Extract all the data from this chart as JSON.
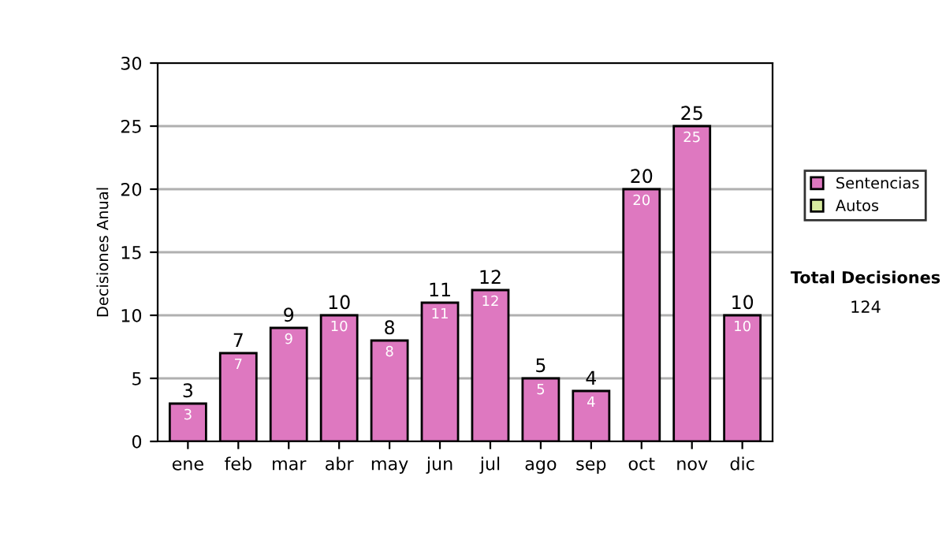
{
  "chart_data": {
    "type": "bar",
    "ylabel": "Decisiones Anual",
    "categories": [
      "ene",
      "feb",
      "mar",
      "abr",
      "may",
      "jun",
      "jul",
      "ago",
      "sep",
      "oct",
      "nov",
      "dic"
    ],
    "series": [
      {
        "name": "Sentencias",
        "color": "#de78c0",
        "values": [
          3,
          7,
          9,
          10,
          8,
          11,
          12,
          5,
          4,
          20,
          25,
          10
        ],
        "value_labels": [
          "3",
          "7",
          "9",
          "10",
          "8",
          "11",
          "12",
          "5",
          "4",
          "20",
          "25",
          "10"
        ]
      },
      {
        "name": "Autos",
        "color": "#d8eca0",
        "values": [
          0,
          0,
          0,
          0,
          0,
          0,
          0,
          0,
          0,
          0,
          0,
          0
        ]
      }
    ],
    "stacked": true,
    "totals": [
      "3",
      "7",
      "9",
      "10",
      "8",
      "11",
      "12",
      "5",
      "4",
      "20",
      "25",
      "10"
    ],
    "ylim": [
      0,
      30
    ],
    "yticks": [
      0,
      5,
      10,
      15,
      20,
      25,
      30
    ],
    "grid": "y",
    "legend": "right",
    "annotations": [
      "Total Decisiones",
      "124"
    ]
  }
}
